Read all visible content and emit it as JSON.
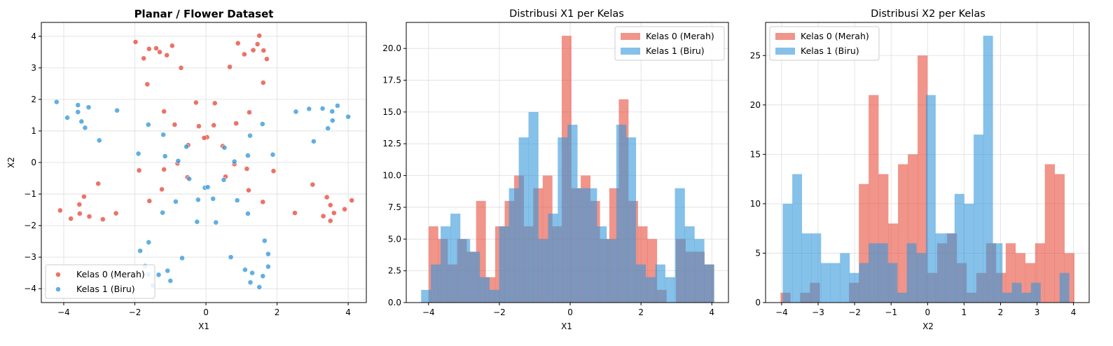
{
  "colors": {
    "class0": "#e74c3c",
    "class1": "#3498db",
    "grid": "#dddddd"
  },
  "chart_data": [
    {
      "type": "scatter",
      "title": "Planar / Flower Dataset",
      "xlabel": "X1",
      "ylabel": "X2",
      "xlim": [
        -4.63,
        4.51
      ],
      "ylim": [
        -4.44,
        4.44
      ],
      "xticks": [
        -4,
        -2,
        0,
        2,
        4
      ],
      "yticks": [
        -4,
        -3,
        -2,
        -1,
        0,
        1,
        2,
        3,
        4
      ],
      "grid": true,
      "legend_position": "lower-left",
      "series": [
        {
          "name": "Kelas 0 (Merah)",
          "color": "#e74c3c",
          "points": [
            [
              0.47,
              0.52
            ],
            [
              1.22,
              1.59
            ],
            [
              1.61,
              2.53
            ],
            [
              1.71,
              3.28
            ],
            [
              1.62,
              3.55
            ],
            [
              1.33,
              3.56
            ],
            [
              1.08,
              3.43
            ],
            [
              0.67,
              3.03
            ],
            [
              0.25,
              1.88
            ],
            [
              0.03,
              0.8
            ],
            [
              0.85,
              1.24
            ],
            [
              0.22,
              1.18
            ],
            [
              1.45,
              3.75
            ],
            [
              0.9,
              3.78
            ],
            [
              1.5,
              4.02
            ],
            [
              -0.5,
              0.55
            ],
            [
              -1.18,
              1.62
            ],
            [
              -1.65,
              2.48
            ],
            [
              -1.75,
              3.3
            ],
            [
              -1.6,
              3.6
            ],
            [
              -1.3,
              3.5
            ],
            [
              -1.1,
              3.4
            ],
            [
              -0.7,
              3.0
            ],
            [
              -0.28,
              1.9
            ],
            [
              -0.05,
              0.78
            ],
            [
              -0.88,
              1.2
            ],
            [
              -0.2,
              1.15
            ],
            [
              -1.98,
              3.82
            ],
            [
              -1.4,
              3.62
            ],
            [
              -0.95,
              3.7
            ],
            [
              -0.52,
              -0.47
            ],
            [
              -1.59,
              -1.22
            ],
            [
              -2.53,
              -1.61
            ],
            [
              -3.28,
              -1.71
            ],
            [
              -3.55,
              -1.62
            ],
            [
              -3.56,
              -1.33
            ],
            [
              -3.43,
              -1.08
            ],
            [
              -3.03,
              -0.67
            ],
            [
              -1.88,
              -0.25
            ],
            [
              -0.8,
              -0.03
            ],
            [
              -1.24,
              -0.85
            ],
            [
              -1.18,
              -0.22
            ],
            [
              -4.1,
              -1.52
            ],
            [
              -3.8,
              -1.78
            ],
            [
              -2.9,
              -1.8
            ],
            [
              0.55,
              -0.45
            ],
            [
              1.6,
              -1.25
            ],
            [
              2.5,
              -1.6
            ],
            [
              3.3,
              -1.7
            ],
            [
              3.6,
              -1.6
            ],
            [
              3.5,
              -1.35
            ],
            [
              3.4,
              -1.1
            ],
            [
              3.0,
              -0.7
            ],
            [
              1.9,
              -0.27
            ],
            [
              0.8,
              -0.05
            ],
            [
              1.2,
              -0.88
            ],
            [
              1.15,
              -0.2
            ],
            [
              4.1,
              -1.2
            ],
            [
              3.9,
              -1.48
            ],
            [
              3.5,
              -1.85
            ]
          ]
        },
        {
          "name": "Kelas 1 (Biru)",
          "color": "#3498db",
          "points": [
            [
              0.52,
              0.47
            ],
            [
              1.59,
              1.22
            ],
            [
              2.53,
              1.61
            ],
            [
              3.28,
              1.71
            ],
            [
              3.55,
              1.62
            ],
            [
              3.56,
              1.33
            ],
            [
              3.43,
              1.08
            ],
            [
              3.03,
              0.67
            ],
            [
              1.88,
              0.25
            ],
            [
              0.8,
              0.03
            ],
            [
              1.24,
              0.85
            ],
            [
              1.18,
              0.22
            ],
            [
              4.0,
              1.45
            ],
            [
              3.7,
              1.8
            ],
            [
              2.9,
              1.7
            ],
            [
              -0.55,
              0.5
            ],
            [
              -1.62,
              1.2
            ],
            [
              -2.5,
              1.65
            ],
            [
              -3.3,
              1.75
            ],
            [
              -3.6,
              1.6
            ],
            [
              -3.5,
              1.3
            ],
            [
              -3.4,
              1.1
            ],
            [
              -3.0,
              0.7
            ],
            [
              -1.9,
              0.28
            ],
            [
              -0.78,
              0.05
            ],
            [
              -1.2,
              0.88
            ],
            [
              -1.15,
              0.2
            ],
            [
              -4.2,
              1.92
            ],
            [
              -3.9,
              1.42
            ],
            [
              -3.6,
              1.82
            ],
            [
              -0.47,
              -0.52
            ],
            [
              -1.22,
              -1.59
            ],
            [
              -1.61,
              -2.53
            ],
            [
              -1.71,
              -3.28
            ],
            [
              -1.62,
              -3.55
            ],
            [
              -1.33,
              -3.56
            ],
            [
              -1.08,
              -3.43
            ],
            [
              -0.67,
              -3.03
            ],
            [
              -0.25,
              -1.88
            ],
            [
              -0.03,
              -0.8
            ],
            [
              -0.85,
              -1.24
            ],
            [
              -0.22,
              -1.18
            ],
            [
              -1.5,
              -3.9
            ],
            [
              -1.85,
              -2.8
            ],
            [
              -1.0,
              -3.75
            ],
            [
              0.5,
              -0.55
            ],
            [
              1.18,
              -1.62
            ],
            [
              1.65,
              -2.48
            ],
            [
              1.75,
              -3.3
            ],
            [
              1.6,
              -3.6
            ],
            [
              1.3,
              -3.5
            ],
            [
              1.1,
              -3.4
            ],
            [
              0.7,
              -3.0
            ],
            [
              0.28,
              -1.9
            ],
            [
              0.05,
              -0.78
            ],
            [
              0.88,
              -1.2
            ],
            [
              0.2,
              -1.15
            ],
            [
              1.5,
              -3.95
            ],
            [
              1.75,
              -2.9
            ],
            [
              1.25,
              -3.8
            ]
          ]
        }
      ]
    },
    {
      "type": "bar",
      "title": "Distribusi X1 per Kelas",
      "xlabel": "X1",
      "ylabel": "",
      "xlim": [
        -4.63,
        4.47
      ],
      "ylim": [
        0,
        22.05
      ],
      "xticks": [
        -4,
        -2,
        0,
        2,
        4
      ],
      "yticks": [
        0,
        2.5,
        5,
        7.5,
        10,
        12.5,
        15,
        17.5,
        20
      ],
      "ytick_labels": [
        "0.0",
        "2.5",
        "5.0",
        "7.5",
        "10.0",
        "12.5",
        "15.0",
        "17.5",
        "20.0"
      ],
      "grid": true,
      "legend_position": "top-right",
      "series": [
        {
          "name": "Kelas 0 (Merah)",
          "color": "#e74c3c",
          "range": [
            -4.0,
            4.06
          ],
          "values": [
            6,
            5,
            3,
            5,
            4,
            8,
            2,
            6,
            8,
            10,
            6,
            9,
            10,
            6,
            21,
            9,
            10,
            8,
            5,
            9,
            16,
            8,
            6,
            5,
            1,
            0,
            5,
            4,
            4,
            3
          ]
        },
        {
          "name": "Kelas 1 (Biru)",
          "color": "#3498db",
          "range": [
            -4.21,
            4.06
          ],
          "values": [
            1,
            3,
            6,
            7,
            5,
            4,
            2,
            1,
            6,
            9,
            13,
            15,
            5,
            7,
            13,
            14,
            9,
            9,
            6,
            5,
            14,
            13,
            3,
            2,
            3,
            2,
            9,
            6,
            5,
            3
          ]
        }
      ]
    },
    {
      "type": "bar",
      "title": "Distribusi X2 per Kelas",
      "xlabel": "X2",
      "ylabel": "",
      "xlim": [
        -4.44,
        4.43
      ],
      "ylim": [
        0,
        28.35
      ],
      "xticks": [
        -4,
        -3,
        -2,
        -1,
        0,
        1,
        2,
        3,
        4
      ],
      "yticks": [
        0,
        5,
        10,
        15,
        20,
        25
      ],
      "grid": true,
      "legend_position": "top-left",
      "series": [
        {
          "name": "Kelas 0 (Merah)",
          "color": "#e74c3c",
          "range": [
            -4.03,
            4.02
          ],
          "values": [
            1,
            0,
            1,
            2,
            0,
            0,
            0,
            2,
            12,
            21,
            13,
            8,
            14,
            15,
            25,
            3,
            6,
            7,
            4,
            1,
            3,
            6,
            3,
            6,
            5,
            4,
            6,
            14,
            13,
            5
          ]
        },
        {
          "name": "Kelas 1 (Biru)",
          "color": "#3498db",
          "range": [
            -3.97,
            3.88
          ],
          "values": [
            10,
            13,
            7,
            7,
            4,
            4,
            5,
            3,
            4,
            6,
            6,
            4,
            1,
            6,
            5,
            21,
            7,
            7,
            11,
            10,
            17,
            27,
            6,
            1,
            2,
            1,
            2,
            0,
            0,
            3
          ]
        }
      ]
    }
  ]
}
